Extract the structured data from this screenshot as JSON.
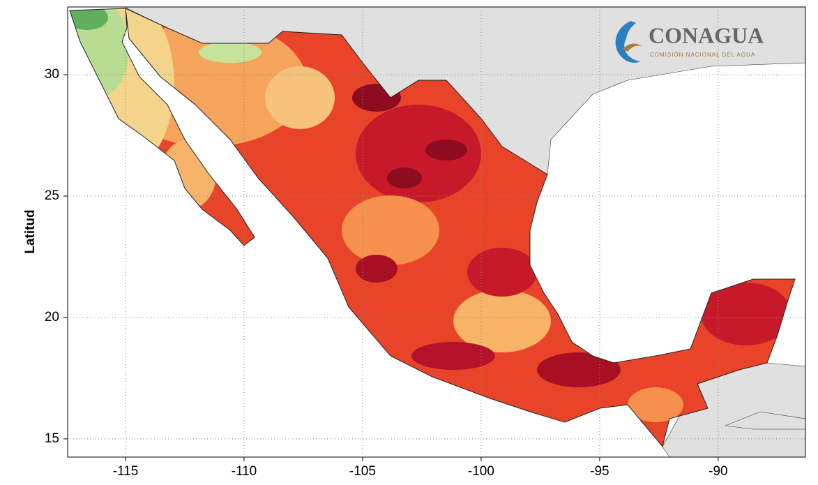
{
  "map": {
    "ylabel": "Latitud",
    "xlim": [
      -117.44,
      -86.32
    ],
    "ylim": [
      14.25,
      32.79
    ],
    "xticks": [
      -115,
      -110,
      -105,
      -100,
      -95,
      -90
    ],
    "yticks": [
      15,
      20,
      25,
      30
    ],
    "logo": {
      "name": "CONAGUA",
      "subtitle": "COMISIÓN NACIONAL DEL AGUA"
    }
  }
}
